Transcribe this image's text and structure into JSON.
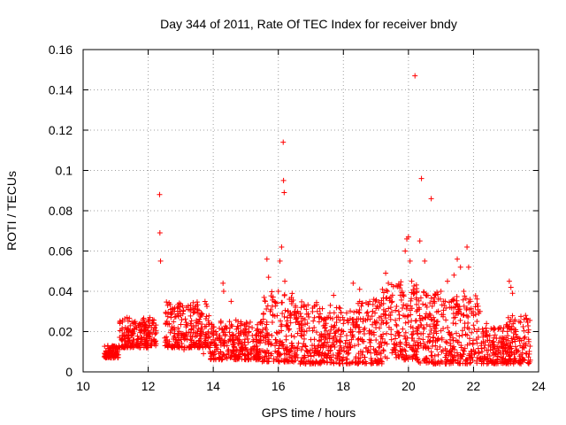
{
  "chart_data": {
    "type": "scatter",
    "title": "Day 344 of 2011, Rate Of TEC Index for receiver bndy",
    "xlabel": "GPS time / hours",
    "ylabel": "ROTI / TECUs",
    "xlim": [
      10,
      24
    ],
    "ylim": [
      0,
      0.16
    ],
    "xticks": [
      "10",
      "12",
      "14",
      "16",
      "18",
      "20",
      "22",
      "24"
    ],
    "yticks": [
      "0",
      "0.02",
      "0.04",
      "0.06",
      "0.08",
      "0.1",
      "0.12",
      "0.14",
      "0.16"
    ],
    "grid": true,
    "marker": "+",
    "color": "#ff0000",
    "series": [
      {
        "x": [
          10.7,
          10.8,
          10.9,
          11.0,
          11.1,
          11.2,
          11.3,
          11.35,
          11.4,
          11.5,
          11.6,
          11.7,
          11.8,
          11.9,
          12.0,
          12.05,
          12.1,
          12.2,
          12.35,
          12.36,
          12.38,
          12.55,
          12.6,
          12.7,
          12.8,
          12.9,
          13.0,
          13.1,
          13.2,
          13.3,
          13.4,
          13.5,
          13.6,
          13.7,
          13.8,
          13.9,
          14.0,
          14.1,
          14.2,
          14.3,
          14.32,
          14.4,
          14.5,
          14.55,
          14.6,
          14.7,
          14.8,
          14.9,
          15.0,
          15.1,
          15.2,
          15.3,
          15.4,
          15.5,
          15.6,
          15.65,
          15.7,
          15.75,
          15.8,
          15.9,
          16.0,
          16.05,
          16.1,
          16.12,
          16.15,
          16.16,
          16.18,
          16.2,
          16.3,
          16.4,
          16.5,
          16.6,
          16.7,
          16.8,
          16.9,
          17.0,
          17.1,
          17.2,
          17.3,
          17.4,
          17.5,
          17.6,
          17.7,
          17.8,
          17.9,
          18.0,
          18.1,
          18.2,
          18.3,
          18.4,
          18.5,
          18.6,
          18.7,
          18.8,
          18.9,
          19.0,
          19.1,
          19.2,
          19.3,
          19.4,
          19.5,
          19.6,
          19.7,
          19.8,
          19.9,
          19.95,
          20.0,
          20.05,
          20.1,
          20.2,
          20.25,
          20.3,
          20.35,
          20.4,
          20.5,
          20.6,
          20.65,
          20.7,
          20.8,
          20.9,
          21.0,
          21.1,
          21.2,
          21.3,
          21.4,
          21.5,
          21.6,
          21.7,
          21.8,
          21.85,
          21.9,
          22.0,
          22.1,
          22.2,
          22.3,
          22.4,
          22.5,
          22.6,
          22.7,
          22.8,
          22.9,
          23.0,
          23.1,
          23.15,
          23.2,
          23.3,
          23.4,
          23.5,
          23.6,
          23.7
        ],
        "y": [
          0.01,
          0.011,
          0.009,
          0.012,
          0.013,
          0.018,
          0.022,
          0.027,
          0.02,
          0.018,
          0.025,
          0.023,
          0.017,
          0.016,
          0.026,
          0.027,
          0.022,
          0.015,
          0.088,
          0.069,
          0.055,
          0.029,
          0.033,
          0.027,
          0.022,
          0.018,
          0.028,
          0.011,
          0.016,
          0.024,
          0.022,
          0.018,
          0.02,
          0.009,
          0.013,
          0.01,
          0.008,
          0.012,
          0.018,
          0.044,
          0.04,
          0.022,
          0.025,
          0.035,
          0.014,
          0.011,
          0.016,
          0.009,
          0.012,
          0.02,
          0.018,
          0.008,
          0.015,
          0.024,
          0.035,
          0.056,
          0.047,
          0.03,
          0.018,
          0.013,
          0.04,
          0.055,
          0.062,
          0.029,
          0.114,
          0.095,
          0.089,
          0.045,
          0.03,
          0.018,
          0.012,
          0.025,
          0.032,
          0.02,
          0.01,
          0.016,
          0.022,
          0.03,
          0.012,
          0.008,
          0.027,
          0.033,
          0.038,
          0.015,
          0.01,
          0.02,
          0.018,
          0.012,
          0.044,
          0.03,
          0.041,
          0.025,
          0.012,
          0.016,
          0.03,
          0.022,
          0.014,
          0.041,
          0.049,
          0.028,
          0.035,
          0.018,
          0.03,
          0.04,
          0.06,
          0.066,
          0.067,
          0.055,
          0.045,
          0.147,
          0.03,
          0.022,
          0.065,
          0.096,
          0.055,
          0.038,
          0.028,
          0.086,
          0.035,
          0.025,
          0.04,
          0.033,
          0.045,
          0.018,
          0.048,
          0.056,
          0.052,
          0.04,
          0.062,
          0.052,
          0.035,
          0.028,
          0.02,
          0.03,
          0.015,
          0.024,
          0.018,
          0.012,
          0.01,
          0.022,
          0.014,
          0.016,
          0.045,
          0.042,
          0.039,
          0.02,
          0.025,
          0.012,
          0.028,
          0.015
        ]
      }
    ],
    "dense_band": {
      "spans": [
        [
          10.65,
          11.1,
          0.007,
          0.013
        ],
        [
          11.1,
          12.0,
          0.012,
          0.027
        ],
        [
          12.0,
          12.25,
          0.013,
          0.026
        ],
        [
          12.5,
          13.9,
          0.012,
          0.035
        ],
        [
          13.9,
          15.5,
          0.006,
          0.026
        ],
        [
          15.5,
          16.6,
          0.005,
          0.04
        ],
        [
          16.6,
          17.3,
          0.004,
          0.035
        ],
        [
          17.3,
          18.4,
          0.004,
          0.032
        ],
        [
          18.4,
          19.2,
          0.004,
          0.036
        ],
        [
          19.2,
          20.3,
          0.006,
          0.045
        ],
        [
          20.3,
          21.2,
          0.004,
          0.04
        ],
        [
          21.2,
          22.2,
          0.004,
          0.038
        ],
        [
          22.2,
          23.0,
          0.004,
          0.022
        ],
        [
          23.0,
          23.75,
          0.004,
          0.028
        ]
      ]
    }
  }
}
